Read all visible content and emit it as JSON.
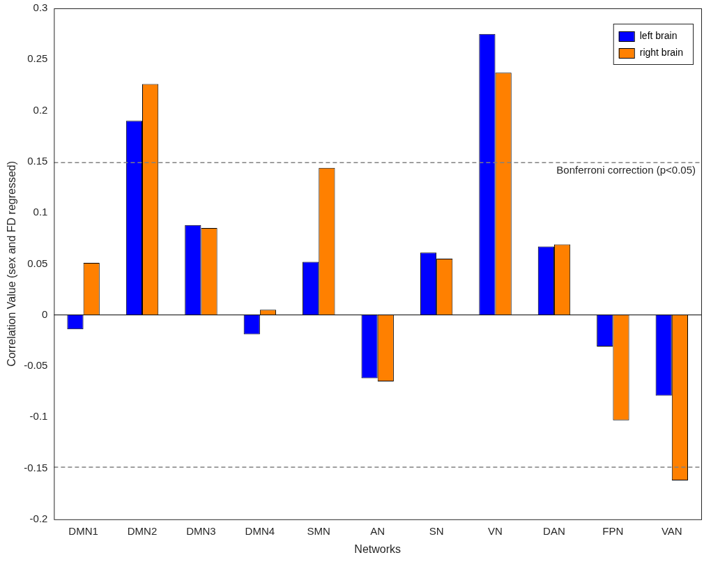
{
  "chart_data": {
    "type": "bar",
    "x_label": "Networks",
    "y_label": "Correlation Value (sex and FD regressed)",
    "categories": [
      "DMN1",
      "DMN2",
      "DMN3",
      "DMN4",
      "SMN",
      "AN",
      "SN",
      "VN",
      "DAN",
      "FPN",
      "VAN"
    ],
    "series": [
      {
        "name": "left brain",
        "color": "#0000ff",
        "values": [
          -0.014,
          0.19,
          0.088,
          -0.019,
          0.052,
          -0.062,
          0.061,
          0.275,
          0.067,
          -0.031,
          -0.079
        ]
      },
      {
        "name": "right brain",
        "color": "#ff8000",
        "values": [
          0.051,
          0.226,
          0.085,
          0.005,
          0.144,
          -0.065,
          0.055,
          0.237,
          0.069,
          -0.103,
          -0.162
        ]
      }
    ],
    "ylim": [
      -0.2,
      0.3
    ],
    "yticks": [
      -0.2,
      -0.15,
      -0.1,
      -0.05,
      0,
      0.05,
      0.1,
      0.15,
      0.2,
      0.25,
      0.3
    ],
    "threshold_lines": [
      0.149,
      -0.149
    ],
    "annotations": [
      {
        "text": "Bonferroni correction (p<0.05)",
        "y": 0.149
      }
    ],
    "legend": "upper right",
    "grid": false
  }
}
